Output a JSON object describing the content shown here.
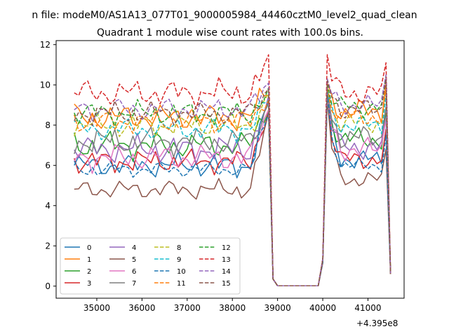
{
  "suptitle": "n file: modeM0/AS1A13_077T01_9000005984_44460cztM0_level2_quad_clean",
  "chart_data": {
    "type": "line",
    "title": "Quadrant 1 module wise count rates with 100.0s bins.",
    "xlabel": "",
    "ylabel": "",
    "x_offset_label": "+4.395e8",
    "xlim": [
      34100,
      41800
    ],
    "ylim": [
      -0.6,
      12.2
    ],
    "xticks": [
      35000,
      36000,
      37000,
      38000,
      39000,
      40000,
      41000
    ],
    "yticks": [
      0,
      2,
      4,
      6,
      8,
      10,
      12
    ],
    "grid": false,
    "legend_position": "lower-left",
    "legend_columns": 4,
    "x_start": 34500,
    "x_step": 100,
    "series": [
      {
        "name": "0",
        "color": "#1f77b4",
        "dash": "solid",
        "base": 6.0,
        "amp": 0.3,
        "ph": 0.0,
        "a_base": 6.3,
        "peak": 9.8
      },
      {
        "name": "1",
        "color": "#ff7f0e",
        "dash": "solid",
        "base": 8.4,
        "amp": 0.35,
        "ph": 0.7,
        "a_base": 8.7,
        "peak": 10.1
      },
      {
        "name": "2",
        "color": "#2ca02c",
        "dash": "solid",
        "base": 7.0,
        "amp": 0.35,
        "ph": 1.4,
        "a_base": 7.3,
        "peak": 9.7
      },
      {
        "name": "3",
        "color": "#d62728",
        "dash": "solid",
        "base": 6.2,
        "amp": 0.3,
        "ph": 2.1,
        "a_base": 6.3,
        "peak": 9.5
      },
      {
        "name": "4",
        "color": "#9467bd",
        "dash": "solid",
        "base": 6.8,
        "amp": 0.35,
        "ph": 2.8,
        "a_base": 6.9,
        "peak": 9.7
      },
      {
        "name": "5",
        "color": "#8c564b",
        "dash": "solid",
        "base": 4.8,
        "amp": 0.25,
        "ph": 3.5,
        "a_base": 5.3,
        "peak": 9.3
      },
      {
        "name": "6",
        "color": "#e377c2",
        "dash": "solid",
        "base": 6.4,
        "amp": 0.35,
        "ph": 4.2,
        "a_base": 6.8,
        "peak": 9.4
      },
      {
        "name": "7",
        "color": "#7f7f7f",
        "dash": "solid",
        "base": 7.2,
        "amp": 0.35,
        "ph": 4.9,
        "a_base": 7.4,
        "peak": 9.6
      },
      {
        "name": "8",
        "color": "#bcbd22",
        "dash": "dashed",
        "base": 8.0,
        "amp": 0.3,
        "ph": 5.6,
        "a_base": 8.1,
        "peak": 9.7
      },
      {
        "name": "9",
        "color": "#17becf",
        "dash": "dashed",
        "base": 7.8,
        "amp": 0.3,
        "ph": 0.4,
        "a_base": 8.0,
        "peak": 9.6
      },
      {
        "name": "10",
        "color": "#1f77b4",
        "dash": "dashed",
        "base": 5.8,
        "amp": 0.2,
        "ph": 1.1,
        "a_base": 6.0,
        "peak": 9.6
      },
      {
        "name": "11",
        "color": "#ff7f0e",
        "dash": "dashed",
        "base": 8.2,
        "amp": 0.3,
        "ph": 1.8,
        "a_base": 8.4,
        "peak": 9.9
      },
      {
        "name": "12",
        "color": "#2ca02c",
        "dash": "dashed",
        "base": 8.6,
        "amp": 0.3,
        "ph": 2.5,
        "a_base": 8.9,
        "peak": 10.0
      },
      {
        "name": "13",
        "color": "#d62728",
        "dash": "dashed",
        "base": 9.6,
        "amp": 0.35,
        "ph": 3.2,
        "a_base": 9.6,
        "peak": 11.5
      },
      {
        "name": "14",
        "color": "#9467bd",
        "dash": "dashed",
        "base": 8.8,
        "amp": 0.3,
        "ph": 3.9,
        "a_base": 9.0,
        "peak": 10.3
      },
      {
        "name": "15",
        "color": "#8c564b",
        "dash": "dashed",
        "base": 8.6,
        "amp": 0.3,
        "ph": 4.6,
        "a_base": 8.8,
        "peak": 10.2
      }
    ]
  }
}
